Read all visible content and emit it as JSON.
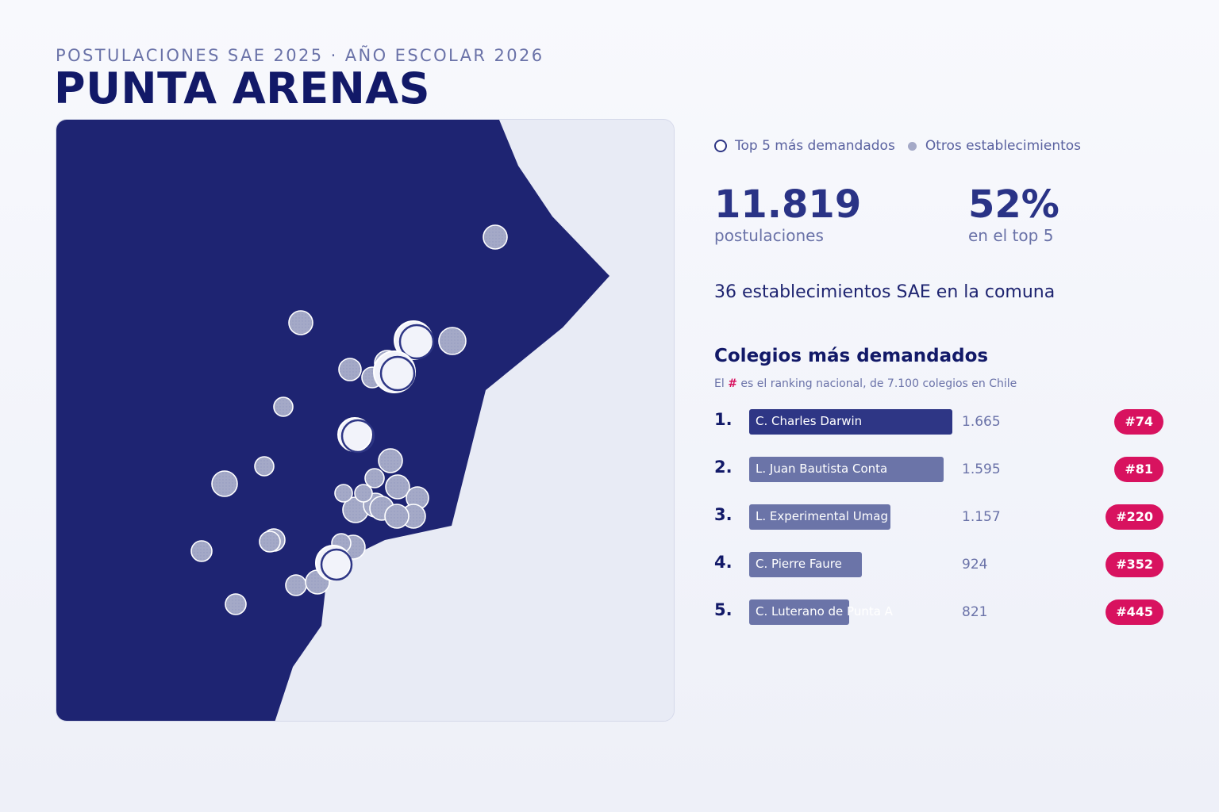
{
  "header": {
    "eyebrow": "POSTULACIONES SAE 2025 · AÑO ESCOLAR 2026",
    "title": "PUNTA ARENAS"
  },
  "legend": {
    "top5_label": "Top 5 más demandados",
    "others_label": "Otros establecimientos"
  },
  "stats": {
    "applications_value": "11.819",
    "applications_label": "postulaciones",
    "top5_share_value": "52%",
    "top5_share_label": "en el top 5"
  },
  "schools_count_text": "36 establecimientos SAE en la comuna",
  "ranking": {
    "title": "Colegios más demandados",
    "subtitle_prefix": "El",
    "subtitle_hash": "#",
    "subtitle_suffix": "es el ranking nacional, de 7.100 colegios en Chile",
    "items": [
      {
        "rank": "1.",
        "name": "C. Charles Darwin",
        "value": "1.665",
        "national_rank": "#74",
        "applications": 1665
      },
      {
        "rank": "2.",
        "name": "L. Juan Bautista Conta",
        "value": "1.595",
        "national_rank": "#81",
        "applications": 1595
      },
      {
        "rank": "3.",
        "name": "L. Experimental Umag",
        "value": "1.157",
        "national_rank": "#220",
        "applications": 1157
      },
      {
        "rank": "4.",
        "name": "C. Pierre Faure",
        "value": "924",
        "national_rank": "#352",
        "applications": 924
      },
      {
        "rank": "5.",
        "name": "C. Luterano de Punta A",
        "value": "821",
        "national_rank": "#445",
        "applications": 821
      }
    ]
  },
  "colors": {
    "land": "#1e2472",
    "water": "#e8ebf5",
    "accent_badge": "#d8125f",
    "bar_first": "#2e3685",
    "bar_other": "#6b74a8",
    "other_point": "#a4a9c7",
    "top_point": "#f2f3fa"
  }
}
